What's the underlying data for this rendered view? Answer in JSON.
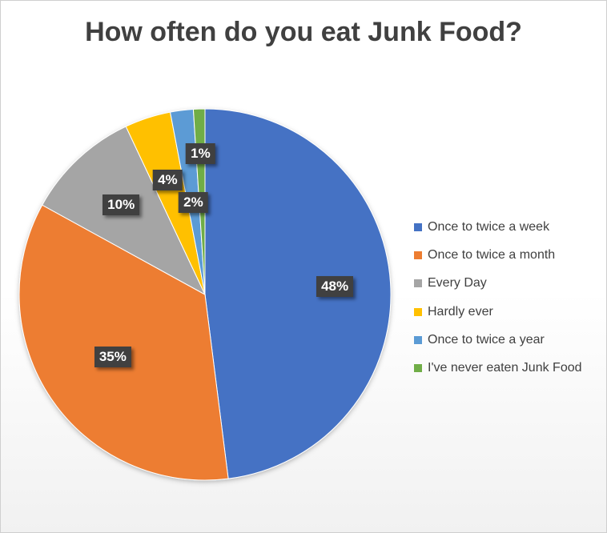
{
  "chart_data": {
    "type": "pie",
    "title": "How often do you eat Junk Food?",
    "categories": [
      "Once to twice a week",
      "Once to twice a month",
      "Every Day",
      "Hardly ever",
      "Once to twice a year",
      "I've never eaten Junk Food"
    ],
    "values": [
      48,
      35,
      10,
      4,
      2,
      1
    ],
    "data_labels": [
      "48%",
      "35%",
      "10%",
      "4%",
      "2%",
      "1%"
    ],
    "colors": [
      "#4472C4",
      "#ED7D31",
      "#A5A5A5",
      "#FFC000",
      "#5B9BD5",
      "#70AD47"
    ],
    "legend_position": "right",
    "start_angle": "12 o'clock",
    "direction": "clockwise"
  }
}
